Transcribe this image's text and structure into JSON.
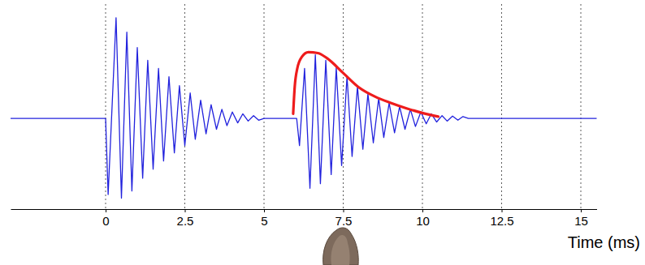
{
  "chart_data": {
    "type": "line",
    "x_label": "Time (ms)",
    "xlim": [
      -3,
      15.5
    ],
    "xticks": [
      0,
      2.5,
      5,
      7.5,
      10,
      12.5,
      15
    ],
    "ylim": [
      -1,
      1.26
    ],
    "yticks": [],
    "grid": true,
    "tick_labels": "x",
    "series": [
      {
        "color": "#2222dd",
        "x": [
          -3,
          0,
          0.08,
          0.33,
          0.5,
          0.67,
          0.83,
          1.0,
          1.17,
          1.33,
          1.5,
          1.67,
          1.83,
          2.0,
          2.17,
          2.33,
          2.5,
          2.67,
          2.83,
          3.0,
          3.17,
          3.33,
          3.5,
          3.67,
          3.83,
          4.0,
          4.17,
          4.33,
          4.5,
          4.67,
          4.83,
          5.0,
          6.03,
          6.12,
          6.28,
          6.45,
          6.62,
          6.78,
          6.95,
          7.12,
          7.28,
          7.45,
          7.62,
          7.78,
          7.95,
          8.12,
          8.28,
          8.45,
          8.62,
          8.78,
          8.95,
          9.12,
          9.28,
          9.45,
          9.62,
          9.78,
          9.95,
          10.12,
          10.28,
          10.45,
          10.62,
          10.78,
          10.95,
          11.12,
          11.28,
          11.45,
          15.5
        ],
        "values": [
          0,
          0,
          -0.84,
          1.11,
          -0.88,
          0.95,
          -0.8,
          0.78,
          -0.66,
          0.64,
          -0.56,
          0.55,
          -0.47,
          0.46,
          -0.38,
          0.36,
          -0.3,
          0.28,
          -0.23,
          0.2,
          -0.17,
          0.15,
          -0.12,
          0.1,
          -0.08,
          0.07,
          -0.05,
          0.05,
          -0.03,
          0.03,
          -0.02,
          0,
          0,
          -0.3,
          0.55,
          -0.77,
          0.7,
          -0.72,
          0.64,
          -0.62,
          0.56,
          -0.52,
          0.46,
          -0.42,
          0.35,
          -0.34,
          0.27,
          -0.27,
          0.22,
          -0.21,
          0.17,
          -0.16,
          0.13,
          -0.12,
          0.1,
          -0.09,
          0.07,
          -0.06,
          0.05,
          -0.04,
          0.03,
          -0.03,
          0.025,
          -0.02,
          0.02,
          0,
          0
        ]
      },
      {
        "color": "#ee1c1c",
        "x": [
          5.92,
          5.97,
          6.05,
          6.2,
          6.4,
          6.7,
          7.0,
          7.5,
          8.0,
          8.5,
          9.0,
          9.5,
          10.0,
          10.5
        ],
        "values": [
          0.05,
          0.35,
          0.55,
          0.68,
          0.73,
          0.72,
          0.66,
          0.5,
          0.34,
          0.24,
          0.17,
          0.11,
          0.06,
          0.02
        ]
      }
    ]
  }
}
